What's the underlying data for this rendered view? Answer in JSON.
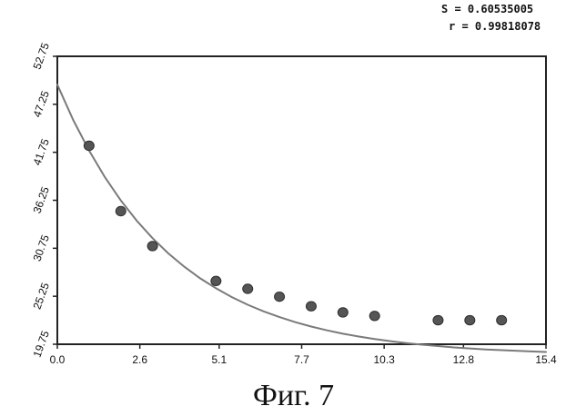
{
  "caption": "Фиг. 7",
  "stats": {
    "s_line": "S = 0.60535005",
    "r_line": "r = 0.99818078"
  },
  "colors": {
    "curve": "#7a7a7a",
    "points": "#555555",
    "frame": "#222222",
    "text": "#111111"
  },
  "chart_data": {
    "type": "scatter",
    "title": "",
    "xlabel": "",
    "ylabel": "",
    "xlim": [
      0.0,
      15.4
    ],
    "ylim": [
      19.75,
      52.75
    ],
    "grid": false,
    "xticks": [
      "0.0",
      "2.6",
      "5.1",
      "7.7",
      "10.3",
      "12.8",
      "15.4"
    ],
    "yticks": [
      "19.75",
      "25.25",
      "30.75",
      "36.25",
      "41.75",
      "47.25",
      "52.75"
    ],
    "points": [
      {
        "x": 1.0,
        "y": 42.5
      },
      {
        "x": 2.0,
        "y": 35.0
      },
      {
        "x": 3.0,
        "y": 31.0
      },
      {
        "x": 5.0,
        "y": 27.0
      },
      {
        "x": 6.0,
        "y": 26.1
      },
      {
        "x": 7.0,
        "y": 25.2
      },
      {
        "x": 8.0,
        "y": 24.1
      },
      {
        "x": 9.0,
        "y": 23.4
      },
      {
        "x": 10.0,
        "y": 23.0
      },
      {
        "x": 12.0,
        "y": 22.5
      },
      {
        "x": 13.0,
        "y": 22.5
      },
      {
        "x": 14.0,
        "y": 22.5
      }
    ],
    "fit_curve": {
      "name": "",
      "x": [
        0,
        0.5,
        1,
        1.5,
        2,
        2.5,
        3,
        3.5,
        4,
        4.5,
        5,
        5.5,
        6,
        6.5,
        7,
        7.5,
        8,
        8.5,
        9,
        9.5,
        10,
        10.5,
        11,
        11.5,
        12,
        12.5,
        13,
        13.5,
        14,
        14.5,
        15,
        15.4
      ],
      "y": [
        49.5,
        45.46,
        41.95,
        38.89,
        36.24,
        33.92,
        31.91,
        30.16,
        28.64,
        27.31,
        26.16,
        25.15,
        24.28,
        23.52,
        22.86,
        22.28,
        21.78,
        21.34,
        20.96,
        20.64,
        20.35,
        20.1,
        19.89,
        19.7,
        19.54,
        19.39,
        19.27,
        19.16,
        19.07,
        18.99,
        18.92,
        18.87
      ]
    }
  }
}
